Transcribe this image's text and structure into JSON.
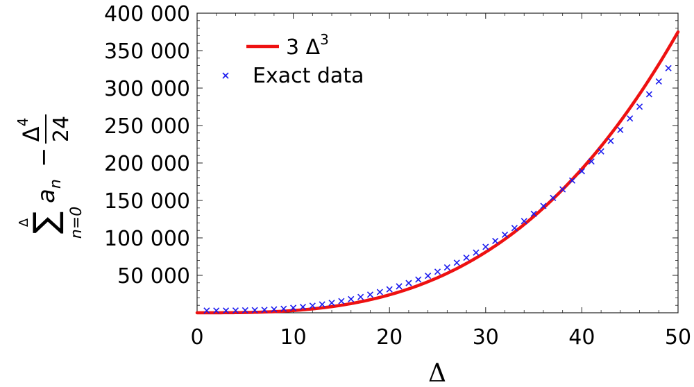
{
  "chart_data": {
    "type": "scatter",
    "xlabel": "Δ",
    "ylabel": {
      "sum_symbol": "∑",
      "sum_upper": "Δ",
      "sum_lower": "n=0",
      "term_base": "a",
      "term_sub": "n",
      "minus": "−",
      "frac_num_base": "Δ",
      "frac_num_exp": "4",
      "frac_den": "24"
    },
    "xlim": [
      0,
      50
    ],
    "ylim": [
      0,
      400000
    ],
    "x_ticks": [
      0,
      10,
      20,
      30,
      40,
      50
    ],
    "x_tick_labels": [
      "0",
      "10",
      "20",
      "30",
      "40",
      "50"
    ],
    "y_ticks": [
      50000,
      100000,
      150000,
      200000,
      250000,
      300000,
      350000,
      400000
    ],
    "y_tick_labels": [
      "50 000",
      "100 000",
      "150 000",
      "200 000",
      "250 000",
      "300 000",
      "350 000",
      "400 000"
    ],
    "legend_position": "top-left",
    "series": [
      {
        "name": "3 Δ³",
        "legend_base": "3 Δ",
        "legend_exp": "3",
        "kind": "line",
        "color": "#ee1111",
        "formula": "3*x^3",
        "domain": [
          0,
          50
        ]
      },
      {
        "name": "Exact data",
        "kind": "scatter",
        "marker": "x",
        "color": "#1a1aee",
        "x": [
          1,
          2,
          3,
          4,
          5,
          6,
          7,
          8,
          9,
          10,
          11,
          12,
          13,
          14,
          15,
          16,
          17,
          18,
          19,
          20,
          21,
          22,
          23,
          24,
          25,
          26,
          27,
          28,
          29,
          30,
          31,
          32,
          33,
          34,
          35,
          36,
          37,
          38,
          39,
          40,
          41,
          42,
          43,
          44,
          45,
          46,
          47,
          48,
          49
        ],
        "y": [
          3000,
          2900,
          3000,
          3100,
          3300,
          3500,
          3900,
          4600,
          5400,
          6600,
          7800,
          9400,
          11200,
          13300,
          15600,
          18200,
          21100,
          24200,
          27700,
          31300,
          35300,
          39700,
          44400,
          49400,
          54800,
          60600,
          66800,
          73500,
          80400,
          88000,
          95900,
          104200,
          113100,
          122400,
          132200,
          142600,
          153400,
          164800,
          176600,
          189000,
          202000,
          215500,
          229500,
          244200,
          259400,
          275200,
          291700,
          308800,
          326600
        ]
      }
    ]
  }
}
